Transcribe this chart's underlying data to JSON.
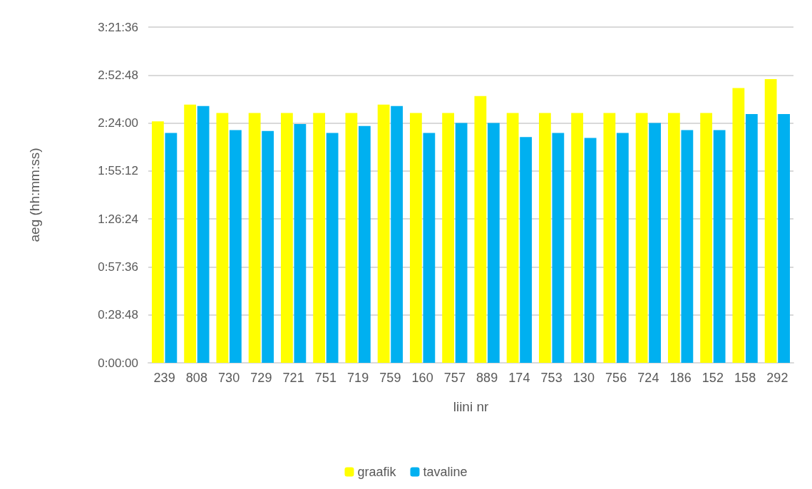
{
  "chart_data": {
    "type": "bar",
    "xlabel": "liini nr",
    "ylabel": "aeg (hh:mm:ss)",
    "categories": [
      "239",
      "808",
      "730",
      "729",
      "721",
      "751",
      "719",
      "759",
      "160",
      "757",
      "889",
      "174",
      "753",
      "130",
      "756",
      "724",
      "186",
      "152",
      "158",
      "292"
    ],
    "series": [
      {
        "name": "graafik",
        "color": "#ffff00",
        "values": [
          2.417,
          2.585,
          2.5,
          2.5,
          2.5,
          2.5,
          2.5,
          2.585,
          2.5,
          2.5,
          2.67,
          2.5,
          2.5,
          2.5,
          2.5,
          2.5,
          2.5,
          2.5,
          2.75,
          2.84
        ]
      },
      {
        "name": "tavaline",
        "color": "#00b0f0",
        "values": [
          2.3,
          2.57,
          2.33,
          2.32,
          2.39,
          2.3,
          2.37,
          2.57,
          2.3,
          2.4,
          2.4,
          2.26,
          2.3,
          2.25,
          2.3,
          2.4,
          2.33,
          2.33,
          2.49,
          2.49
        ]
      }
    ],
    "ylim": [
      0,
      3.36
    ],
    "yticks": [
      {
        "value": 0,
        "label": "0:00:00"
      },
      {
        "value": 0.48,
        "label": "0:28:48"
      },
      {
        "value": 0.96,
        "label": "0:57:36"
      },
      {
        "value": 1.44,
        "label": "1:26:24"
      },
      {
        "value": 1.92,
        "label": "1:55:12"
      },
      {
        "value": 2.4,
        "label": "2:24:00"
      },
      {
        "value": 2.88,
        "label": "2:52:48"
      },
      {
        "value": 3.36,
        "label": "3:21:36"
      }
    ],
    "grid": "y",
    "legend": "bottom"
  }
}
